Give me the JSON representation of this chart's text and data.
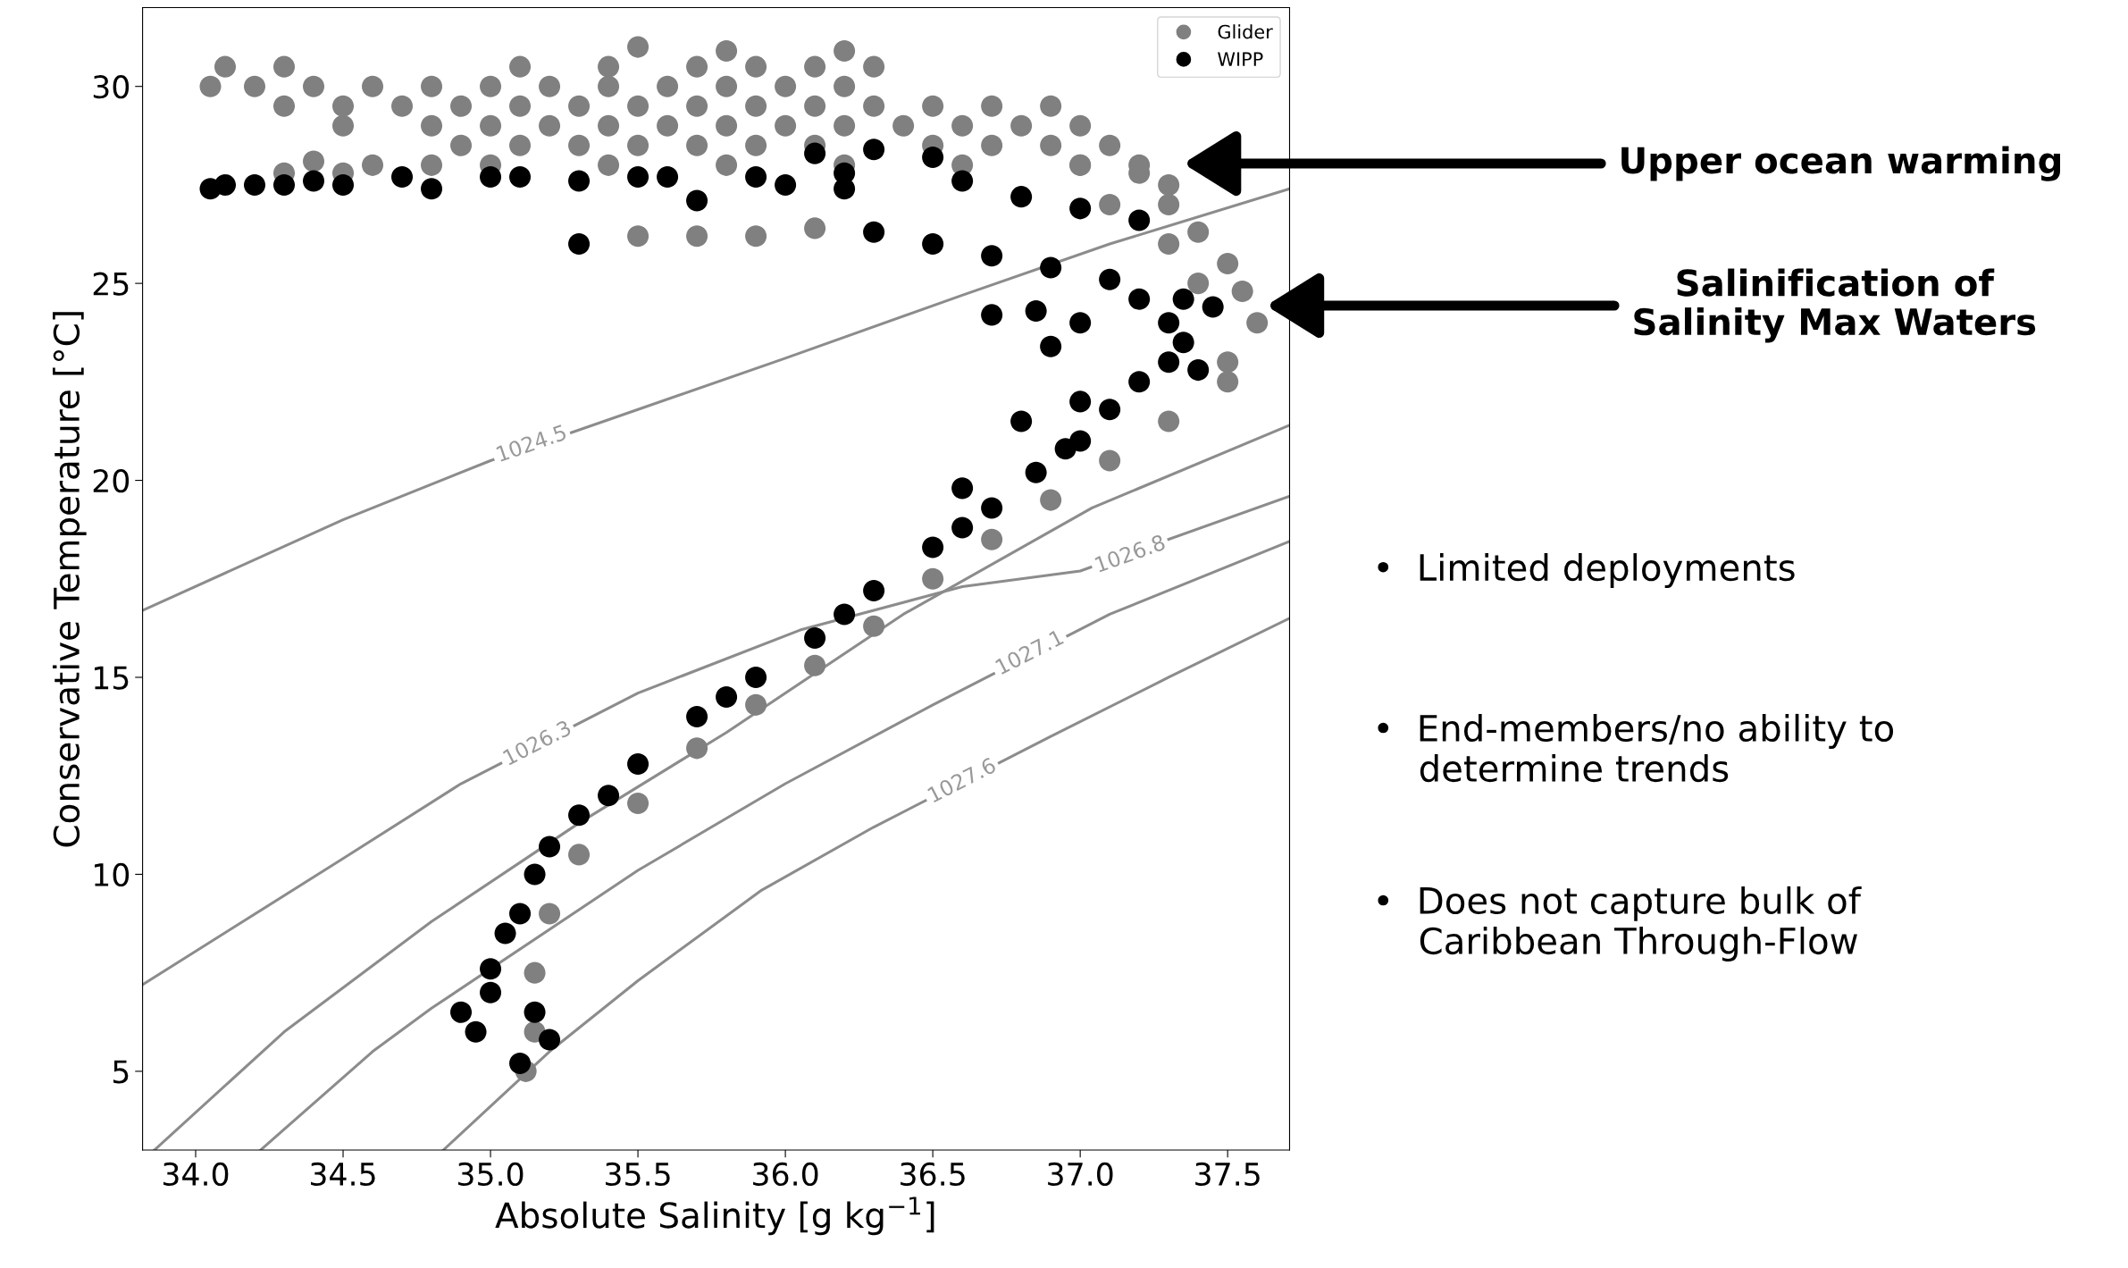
{
  "chart_data": {
    "type": "scatter",
    "xlabel": "Absolute Salinity [g kg$^{−1}$]",
    "ylabel": "Conservative Temperature [°C]",
    "xlim": [
      33.82,
      37.71
    ],
    "ylim": [
      3.0,
      32.0
    ],
    "xticks": [
      {
        "value": 34.0,
        "label": "34.0"
      },
      {
        "value": 34.5,
        "label": "34.5"
      },
      {
        "value": 35.0,
        "label": "35.0"
      },
      {
        "value": 35.5,
        "label": "35.5"
      },
      {
        "value": 36.0,
        "label": "36.0"
      },
      {
        "value": 36.5,
        "label": "36.5"
      },
      {
        "value": 37.0,
        "label": "37.0"
      },
      {
        "value": 37.5,
        "label": "37.5"
      }
    ],
    "yticks": [
      5,
      10,
      15,
      20,
      25,
      30
    ],
    "grid": false,
    "legend": "top right",
    "series": [
      {
        "type": "line",
        "marker": "none",
        "color": "#8c8c8c",
        "x": [
          33.82,
          34.5,
          35.0,
          35.5,
          36.0,
          36.6,
          37.1,
          37.71
        ],
        "values": [
          16.7,
          19.0,
          20.5,
          21.8,
          23.1,
          24.7,
          26.0,
          27.4
        ]
      },
      {
        "type": "line",
        "marker": "none",
        "color": "#8c8c8c",
        "x": [
          33.86,
          34.3,
          34.8,
          35.3,
          35.8,
          36.4,
          37.04,
          37.71
        ],
        "values": [
          3.0,
          6.0,
          8.8,
          11.3,
          13.6,
          16.6,
          19.3,
          21.4
        ]
      },
      {
        "type": "line",
        "marker": "none",
        "color": "#8c8c8c",
        "x": [
          33.82,
          34.5,
          34.9,
          35.5,
          36.05,
          36.6,
          37.0,
          37.71
        ],
        "values": [
          7.2,
          10.4,
          12.3,
          14.6,
          16.2,
          17.3,
          17.7,
          19.6
        ]
      },
      {
        "type": "line",
        "marker": "none",
        "color": "#8c8c8c",
        "x": [
          34.22,
          34.6,
          34.8,
          35.5,
          36.0,
          36.5,
          37.1,
          37.71
        ],
        "values": [
          3.0,
          5.5,
          6.6,
          10.1,
          12.3,
          14.3,
          16.6,
          18.45
        ]
      },
      {
        "type": "line",
        "marker": "none",
        "color": "#8c8c8c",
        "x": [
          34.84,
          35.2,
          35.5,
          35.92,
          36.3,
          36.9,
          37.3,
          37.71
        ],
        "values": [
          3.0,
          5.5,
          7.3,
          9.6,
          11.2,
          13.5,
          15.0,
          16.5
        ]
      },
      {
        "name": "Glider",
        "marker": "circle",
        "color": "#808080",
        "x": [
          34.05,
          34.2,
          34.4,
          34.6,
          34.8,
          35.0,
          35.2,
          35.4,
          35.6,
          35.8,
          36.0,
          36.2,
          34.1,
          34.3,
          35.1,
          35.4,
          35.7,
          35.9,
          36.1,
          36.3,
          35.5,
          35.8,
          36.2,
          34.3,
          34.5,
          34.7,
          34.9,
          35.1,
          35.3,
          35.5,
          35.7,
          35.9,
          36.1,
          36.3,
          36.5,
          36.7,
          36.9,
          34.5,
          34.8,
          35.0,
          35.2,
          35.4,
          35.6,
          35.8,
          36.0,
          36.2,
          36.4,
          36.6,
          36.8,
          37.0,
          34.9,
          35.1,
          35.3,
          35.5,
          35.7,
          35.9,
          36.1,
          36.3,
          36.5,
          36.7,
          36.9,
          37.1,
          34.4,
          34.6,
          34.8,
          35.0,
          35.4,
          35.8,
          36.2,
          36.6,
          37.0,
          37.2,
          34.3,
          34.5,
          35.5,
          35.7,
          35.9,
          36.1,
          37.2,
          37.3,
          37.4,
          37.5,
          37.55,
          37.6,
          37.5,
          37.5,
          37.3,
          37.1,
          37.3,
          37.4,
          37.0,
          37.3,
          37.1,
          36.9,
          36.7,
          36.5,
          36.3,
          36.1,
          35.9,
          35.7,
          35.5,
          35.3,
          35.2,
          35.15,
          35.15,
          35.12
        ],
        "values": [
          30.0,
          30.0,
          30.0,
          30.0,
          30.0,
          30.0,
          30.0,
          30.0,
          30.0,
          30.0,
          30.0,
          30.0,
          30.5,
          30.5,
          30.5,
          30.5,
          30.5,
          30.5,
          30.5,
          30.5,
          31.0,
          30.9,
          30.9,
          29.5,
          29.5,
          29.5,
          29.5,
          29.5,
          29.5,
          29.5,
          29.5,
          29.5,
          29.5,
          29.5,
          29.5,
          29.5,
          29.5,
          29.0,
          29.0,
          29.0,
          29.0,
          29.0,
          29.0,
          29.0,
          29.0,
          29.0,
          29.0,
          29.0,
          29.0,
          29.0,
          28.5,
          28.5,
          28.5,
          28.5,
          28.5,
          28.5,
          28.5,
          null,
          28.5,
          28.5,
          28.5,
          28.5,
          28.1,
          28.0,
          28.0,
          28.0,
          28.0,
          28.0,
          28.0,
          28.0,
          28.0,
          28.0,
          27.8,
          27.8,
          26.2,
          26.2,
          26.2,
          26.4,
          27.8,
          27.0,
          26.3,
          25.5,
          24.8,
          24.0,
          23.0,
          22.5,
          27.5,
          27.0,
          26.0,
          25.0,
          28.0,
          21.5,
          20.5,
          19.5,
          18.5,
          17.5,
          16.3,
          15.3,
          14.3,
          13.2,
          11.8,
          10.5,
          9.0,
          7.5,
          6.0,
          5.0
        ]
      },
      {
        "name": "WIPP",
        "marker": "circle",
        "color": "#000000",
        "x": [
          34.05,
          34.1,
          34.2,
          34.3,
          34.4,
          34.5,
          34.7,
          34.8,
          35.0,
          35.1,
          35.3,
          35.5,
          35.6,
          35.9,
          36.0,
          35.3,
          35.7,
          36.2,
          36.1,
          36.3,
          36.5,
          36.2,
          36.6,
          36.8,
          37.0,
          37.2,
          36.3,
          36.5,
          36.7,
          36.9,
          37.1,
          37.2,
          37.3,
          37.35,
          37.3,
          37.2,
          37.1,
          37.0,
          36.85,
          36.7,
          36.5,
          36.3,
          36.1,
          35.9,
          35.7,
          35.5,
          35.3,
          35.15,
          35.05,
          35.0,
          34.95,
          35.1,
          37.0,
          36.85,
          36.9,
          37.0,
          36.7,
          36.8,
          36.6,
          37.35,
          37.45,
          37.4,
          36.95,
          36.6,
          36.2,
          35.8,
          35.4,
          35.2,
          35.1,
          35.0,
          35.15,
          34.9,
          35.2
        ],
        "values": [
          27.4,
          27.5,
          27.5,
          27.5,
          27.6,
          27.5,
          27.7,
          27.4,
          27.7,
          27.7,
          27.6,
          27.7,
          27.7,
          27.7,
          27.5,
          26.0,
          27.1,
          27.4,
          28.3,
          28.4,
          28.2,
          27.8,
          27.6,
          27.2,
          26.9,
          26.6,
          26.3,
          26.0,
          25.7,
          25.4,
          25.1,
          24.6,
          24.0,
          23.5,
          23.0,
          22.5,
          21.8,
          21.0,
          20.2,
          19.3,
          18.3,
          17.2,
          16.0,
          15.0,
          14.0,
          12.8,
          11.5,
          10.0,
          8.5,
          7.0,
          6.0,
          5.2,
          24.0,
          24.3,
          23.4,
          22.0,
          24.2,
          21.5,
          19.8,
          24.6,
          24.4,
          22.8,
          20.8,
          18.8,
          16.6,
          14.5,
          12.0,
          10.7,
          9.0,
          7.6,
          6.5,
          6.5,
          5.8
        ]
      }
    ],
    "annotations": [
      {
        "text": "1024.5",
        "x": 35.14,
        "y": 20.9
      },
      {
        "text": "1026.3",
        "x": 35.16,
        "y": 13.3
      },
      {
        "text": "1026.8",
        "x": 37.17,
        "y": 18.1
      },
      {
        "text": "1027.1",
        "x": 36.83,
        "y": 15.6
      },
      {
        "text": "1027.6",
        "x": 36.6,
        "y": 12.35
      },
      "Upper ocean warming",
      "Salinification of\nSalinity Max Waters",
      "•  Limited deployments",
      "•  End-members/no ability to\n    determine trends",
      "•  Does not capture bulk of\n    Caribbean Through-Flow"
    ]
  }
}
